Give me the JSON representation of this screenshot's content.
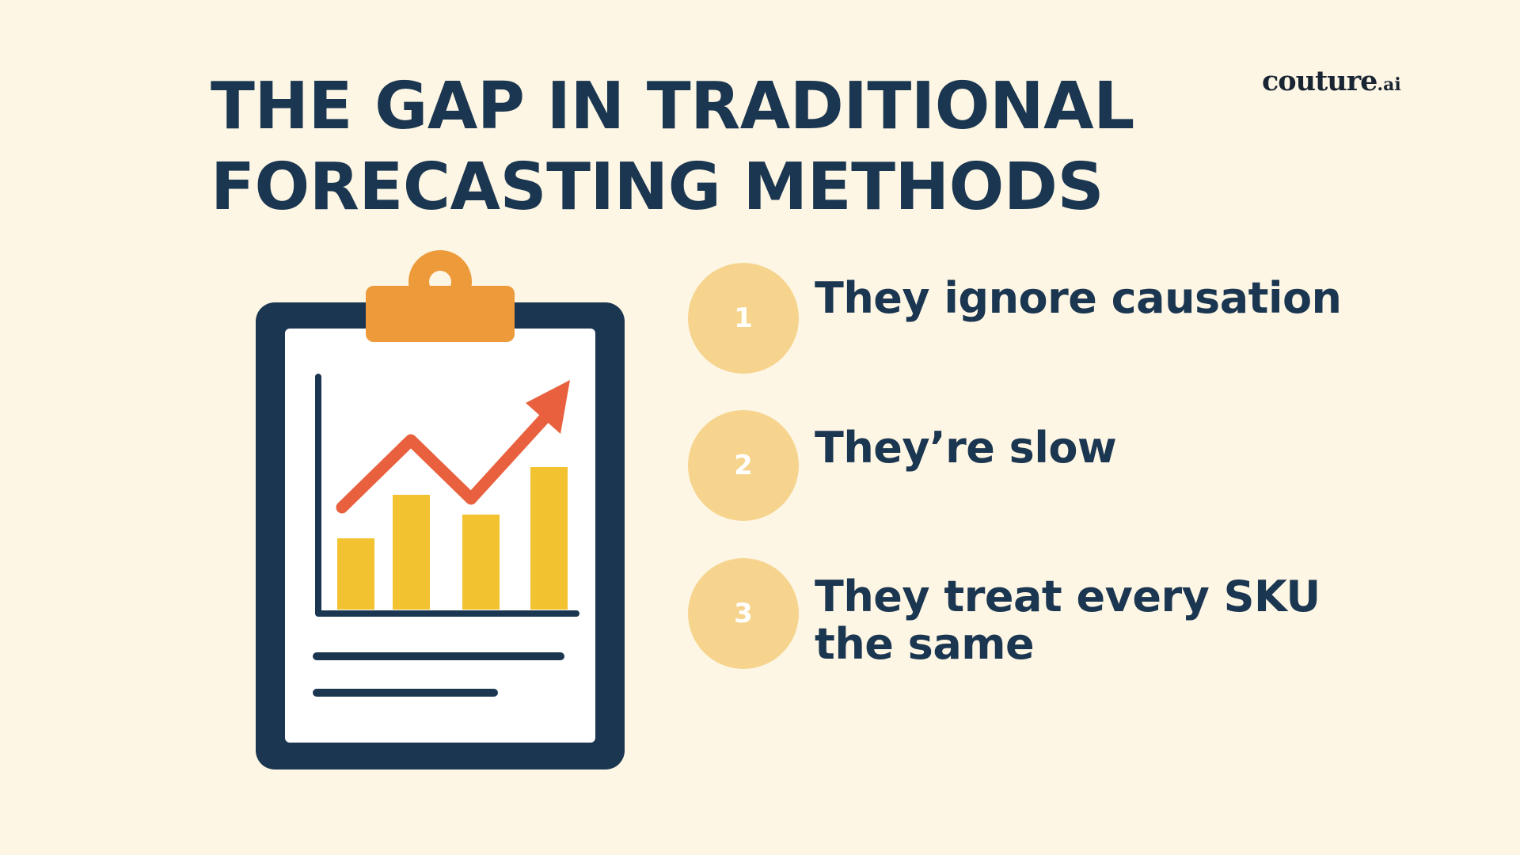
{
  "title": {
    "line1": "THE GAP IN TRADITIONAL",
    "line2": "FORECASTING METHODS"
  },
  "logo": {
    "main": "couture",
    "suffix": ".ai"
  },
  "illustration": {
    "icon": "clipboard-chart-icon",
    "bar_levels": [
      0.36,
      0.58,
      0.48,
      0.72
    ],
    "colors": {
      "board": "#1b3650",
      "paper": "#ffffff",
      "clip": "#ec9a3a",
      "bars": "#f2c230",
      "arrow": "#e8603e"
    }
  },
  "items": [
    {
      "number": "1",
      "line1": "They ignore causation",
      "line2": ""
    },
    {
      "number": "2",
      "line1": "They’re slow",
      "line2": ""
    },
    {
      "number": "3",
      "line1": "They treat every SKU",
      "line2": "the same"
    }
  ],
  "colors": {
    "background": "#fdf6e4",
    "text": "#1b3650",
    "circle": "#f6d48e"
  }
}
